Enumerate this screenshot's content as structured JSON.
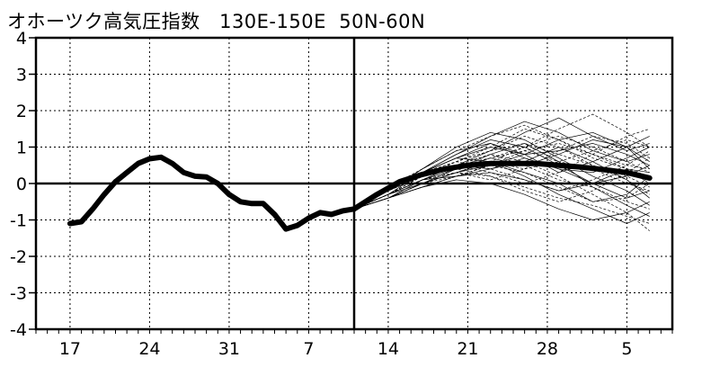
{
  "chart_data": {
    "type": "line",
    "title": "オホーツク高気圧指数　130E-150E  50N-60N",
    "ylim": [
      -4,
      4
    ],
    "y_ticks": [
      "4",
      "3",
      "2",
      "1",
      "0",
      "-1",
      "-2",
      "-3",
      "-4"
    ],
    "x_tick_labels": [
      {
        "label": "17",
        "day": 0
      },
      {
        "label": "24",
        "day": 7
      },
      {
        "label": "31",
        "day": 14
      },
      {
        "label": "7",
        "day": 21
      },
      {
        "label": "14",
        "day": 28
      },
      {
        "label": "21",
        "day": 35
      },
      {
        "label": "28",
        "day": 42
      },
      {
        "label": "5",
        "day": 49
      }
    ],
    "xlim": [
      -3,
      53
    ],
    "grid": true,
    "initial_day": 25,
    "colors": {
      "line": "#000000",
      "grid": "#000000",
      "background": "#ffffff"
    },
    "series": [
      {
        "role": "observed",
        "x": [
          0,
          1,
          2,
          3,
          4,
          5,
          6,
          7,
          8,
          9,
          10,
          11,
          12,
          13,
          14,
          15,
          16,
          17,
          18,
          19,
          20,
          21,
          22,
          23,
          24,
          25
        ],
        "values": [
          -1.1,
          -1.05,
          -0.7,
          -0.3,
          0.05,
          0.3,
          0.55,
          0.68,
          0.72,
          0.55,
          0.3,
          0.2,
          0.18,
          0.0,
          -0.3,
          -0.5,
          -0.55,
          -0.55,
          -0.85,
          -1.25,
          -1.15,
          -0.95,
          -0.8,
          -0.85,
          -0.75,
          -0.7
        ]
      },
      {
        "role": "ensemble_mean",
        "x": [
          25,
          27,
          29,
          31,
          33,
          35,
          37,
          39,
          41,
          43,
          45,
          47,
          49,
          51
        ],
        "values": [
          -0.7,
          -0.3,
          0.05,
          0.25,
          0.4,
          0.5,
          0.55,
          0.55,
          0.55,
          0.5,
          0.45,
          0.38,
          0.3,
          0.15
        ]
      },
      {
        "role": "member",
        "x": [
          25,
          28,
          31,
          34,
          37,
          40,
          43,
          46,
          49,
          51
        ],
        "values": [
          -0.7,
          -0.1,
          0.4,
          0.9,
          1.3,
          1.6,
          1.2,
          0.7,
          0.4,
          0.2
        ]
      },
      {
        "role": "member",
        "x": [
          25,
          28,
          31,
          34,
          37,
          40,
          43,
          46,
          49,
          51
        ],
        "values": [
          -0.7,
          -0.2,
          0.2,
          0.5,
          0.9,
          1.4,
          1.8,
          1.3,
          0.9,
          1.1
        ]
      },
      {
        "role": "member",
        "x": [
          25,
          28,
          31,
          34,
          37,
          40,
          43,
          46,
          49,
          51
        ],
        "values": [
          -0.7,
          -0.3,
          0.1,
          0.3,
          0.6,
          1.0,
          1.5,
          1.9,
          1.4,
          1.0
        ]
      },
      {
        "role": "member",
        "x": [
          25,
          28,
          31,
          34,
          37,
          40,
          43,
          46,
          49,
          51
        ],
        "values": [
          -0.7,
          -0.2,
          0.3,
          0.7,
          1.1,
          0.8,
          0.3,
          0.6,
          1.0,
          1.3
        ]
      },
      {
        "role": "member",
        "x": [
          25,
          28,
          31,
          34,
          37,
          40,
          43,
          46,
          49,
          51
        ],
        "values": [
          -0.7,
          -0.4,
          0.0,
          0.3,
          0.2,
          -0.1,
          -0.4,
          -0.6,
          -0.9,
          -1.1
        ]
      },
      {
        "role": "member",
        "x": [
          25,
          28,
          31,
          34,
          37,
          40,
          43,
          46,
          49,
          51
        ],
        "values": [
          -0.7,
          -0.4,
          -0.1,
          0.1,
          0.0,
          -0.3,
          -0.7,
          -1.0,
          -0.8,
          -0.5
        ]
      },
      {
        "role": "member",
        "x": [
          25,
          28,
          31,
          34,
          37,
          40,
          43,
          46,
          49,
          51
        ],
        "values": [
          -0.7,
          -0.3,
          0.1,
          0.5,
          0.8,
          0.6,
          0.2,
          -0.3,
          -0.8,
          -1.3
        ]
      },
      {
        "role": "member",
        "x": [
          25,
          28,
          31,
          34,
          37,
          40,
          43,
          46,
          49,
          51
        ],
        "values": [
          -0.7,
          -0.2,
          0.3,
          0.8,
          1.2,
          1.0,
          0.5,
          0.0,
          -0.4,
          -0.2
        ]
      },
      {
        "role": "member",
        "x": [
          25,
          28,
          31,
          34,
          37,
          40,
          43,
          46,
          49,
          51
        ],
        "values": [
          -0.7,
          -0.3,
          0.2,
          0.6,
          0.4,
          0.1,
          -0.2,
          0.1,
          0.5,
          0.9
        ]
      },
      {
        "role": "member",
        "x": [
          25,
          28,
          31,
          34,
          37,
          40,
          43,
          46,
          49,
          51
        ],
        "values": [
          -0.7,
          -0.2,
          0.4,
          1.0,
          1.4,
          1.2,
          0.7,
          0.2,
          -0.2,
          -0.6
        ]
      },
      {
        "role": "member",
        "x": [
          25,
          28,
          31,
          34,
          37,
          40,
          43,
          46,
          49,
          51
        ],
        "values": [
          -0.7,
          -0.4,
          0.0,
          0.2,
          0.5,
          0.9,
          1.1,
          0.8,
          0.4,
          0.0
        ]
      },
      {
        "role": "member",
        "x": [
          25,
          28,
          31,
          34,
          37,
          40,
          43,
          46,
          49,
          51
        ],
        "values": [
          -0.7,
          -0.3,
          0.1,
          0.4,
          0.7,
          0.5,
          0.8,
          1.2,
          1.0,
          0.6
        ]
      },
      {
        "role": "member",
        "x": [
          25,
          28,
          31,
          34,
          37,
          40,
          43,
          46,
          49,
          51
        ],
        "values": [
          -0.7,
          -0.3,
          0.2,
          0.6,
          0.9,
          1.3,
          1.0,
          0.5,
          0.1,
          -0.3
        ]
      },
      {
        "role": "member",
        "x": [
          25,
          28,
          31,
          34,
          37,
          40,
          43,
          46,
          49,
          51
        ],
        "values": [
          -0.7,
          -0.2,
          0.3,
          0.7,
          0.6,
          0.3,
          0.0,
          -0.5,
          -0.3,
          0.2
        ]
      },
      {
        "role": "member",
        "x": [
          25,
          28,
          31,
          34,
          37,
          40,
          43,
          46,
          49,
          51
        ],
        "values": [
          -0.7,
          -0.3,
          0.1,
          0.3,
          0.1,
          0.4,
          0.9,
          1.3,
          1.1,
          0.7
        ]
      },
      {
        "role": "member",
        "x": [
          25,
          28,
          31,
          34,
          37,
          40,
          43,
          46,
          49,
          51
        ],
        "values": [
          -0.7,
          -0.4,
          0.0,
          0.4,
          0.8,
          1.1,
          0.6,
          -0.1,
          -0.6,
          -0.9
        ]
      },
      {
        "role": "member",
        "x": [
          25,
          28,
          31,
          34,
          37,
          40,
          43,
          46,
          49,
          51
        ],
        "values": [
          -0.7,
          -0.2,
          0.2,
          0.5,
          0.3,
          0.0,
          0.3,
          0.8,
          1.3,
          1.5
        ]
      },
      {
        "role": "member",
        "x": [
          25,
          28,
          31,
          34,
          37,
          40,
          43,
          46,
          49,
          51
        ],
        "values": [
          -0.7,
          -0.3,
          0.1,
          0.2,
          0.4,
          0.7,
          0.4,
          0.0,
          0.2,
          0.5
        ]
      },
      {
        "role": "member",
        "x": [
          25,
          28,
          31,
          34,
          37,
          40,
          43,
          46,
          49,
          51
        ],
        "values": [
          -0.7,
          -0.4,
          -0.1,
          0.2,
          0.5,
          0.3,
          -0.1,
          -0.5,
          -0.4,
          0.0
        ]
      },
      {
        "role": "member",
        "x": [
          25,
          28,
          31,
          34,
          37,
          40,
          43,
          46,
          49,
          51
        ],
        "values": [
          -0.7,
          -0.2,
          0.4,
          0.9,
          1.1,
          0.7,
          0.4,
          0.3,
          0.7,
          1.0
        ]
      },
      {
        "role": "member",
        "x": [
          25,
          28,
          31,
          34,
          37,
          40,
          43,
          46,
          49,
          51
        ],
        "values": [
          -0.7,
          -0.3,
          0.2,
          0.5,
          0.7,
          1.0,
          1.3,
          1.0,
          0.6,
          0.3
        ]
      },
      {
        "role": "member",
        "x": [
          25,
          28,
          31,
          34,
          37,
          40,
          43,
          46,
          49,
          51
        ],
        "values": [
          -0.7,
          -0.3,
          0.0,
          0.3,
          0.6,
          0.2,
          -0.3,
          -0.7,
          -1.1,
          -0.8
        ]
      },
      {
        "role": "member",
        "x": [
          25,
          28,
          31,
          34,
          37,
          40,
          43,
          46,
          49,
          51
        ],
        "values": [
          -0.7,
          -0.2,
          0.3,
          0.6,
          1.0,
          1.5,
          1.2,
          0.8,
          0.5,
          0.4
        ]
      },
      {
        "role": "member",
        "x": [
          25,
          28,
          31,
          34,
          37,
          40,
          43,
          46,
          49,
          51
        ],
        "values": [
          -0.7,
          -0.4,
          0.1,
          0.5,
          0.4,
          0.6,
          1.0,
          0.6,
          0.1,
          -0.4
        ]
      },
      {
        "role": "member",
        "x": [
          25,
          28,
          31,
          34,
          37,
          40,
          43,
          46,
          49,
          51
        ],
        "values": [
          -0.7,
          -0.3,
          0.2,
          0.4,
          0.2,
          -0.2,
          -0.5,
          -0.2,
          0.3,
          0.7
        ]
      },
      {
        "role": "member",
        "x": [
          25,
          28,
          31,
          34,
          37,
          40,
          43,
          46,
          49,
          51
        ],
        "values": [
          -0.7,
          -0.2,
          0.3,
          0.7,
          1.0,
          0.8,
          0.9,
          1.1,
          0.8,
          0.5
        ]
      },
      {
        "role": "member",
        "x": [
          25,
          28,
          31,
          34,
          37,
          40,
          43,
          46,
          49,
          51
        ],
        "values": [
          -0.7,
          -0.3,
          0.1,
          0.4,
          0.7,
          0.9,
          0.6,
          0.4,
          0.0,
          -0.2
        ]
      },
      {
        "role": "member",
        "x": [
          25,
          28,
          31,
          34,
          37,
          40,
          43,
          46,
          49,
          51
        ],
        "values": [
          -0.7,
          -0.4,
          0.0,
          0.3,
          0.5,
          0.8,
          1.2,
          1.4,
          1.0,
          0.4
        ]
      },
      {
        "role": "member",
        "x": [
          25,
          28,
          31,
          34,
          37,
          40,
          43,
          46,
          49,
          51
        ],
        "values": [
          -0.7,
          -0.2,
          0.2,
          0.5,
          0.8,
          0.5,
          0.1,
          -0.1,
          -0.5,
          -0.7
        ]
      },
      {
        "role": "member",
        "x": [
          25,
          28,
          31,
          34,
          37,
          40,
          43,
          46,
          49,
          51
        ],
        "values": [
          -0.7,
          -0.3,
          0.3,
          0.8,
          1.3,
          1.7,
          1.4,
          0.9,
          0.6,
          0.8
        ]
      },
      {
        "role": "member",
        "x": [
          25,
          28,
          31,
          34,
          37,
          40,
          43,
          46,
          49,
          51
        ],
        "values": [
          -0.7,
          -0.3,
          0.1,
          0.3,
          0.6,
          0.4,
          0.6,
          0.9,
          1.2,
          1.0
        ]
      },
      {
        "role": "member",
        "x": [
          25,
          28,
          31,
          34,
          37,
          40,
          43,
          46,
          49,
          51
        ],
        "values": [
          -0.7,
          -0.4,
          -0.1,
          0.2,
          0.3,
          0.1,
          -0.2,
          0.0,
          0.4,
          0.3
        ]
      },
      {
        "role": "member",
        "x": [
          25,
          28,
          31,
          34,
          37,
          40,
          43,
          46,
          49,
          51
        ],
        "values": [
          -0.7,
          -0.2,
          0.2,
          0.6,
          0.9,
          1.1,
          0.8,
          0.5,
          0.2,
          -0.1
        ]
      }
    ]
  }
}
